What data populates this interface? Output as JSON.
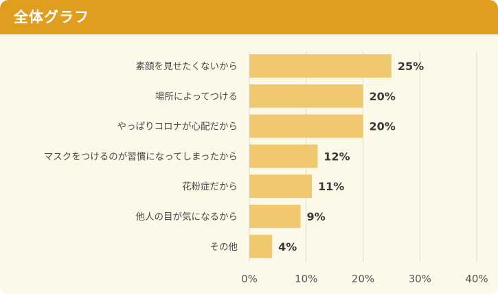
{
  "header": {
    "title": "全体グラフ"
  },
  "chart_data": {
    "type": "bar",
    "orientation": "horizontal",
    "categories": [
      "素顔を見せたくないから",
      "場所によってつける",
      "やっぱりコロナが心配だから",
      "マスクをつけるのが習慣になってしまったから",
      "花粉症だから",
      "他人の目が気になるから",
      "その他"
    ],
    "values": [
      25,
      20,
      20,
      12,
      11,
      9,
      4
    ],
    "value_labels": [
      "25%",
      "20%",
      "20%",
      "12%",
      "11%",
      "9%",
      "4%"
    ],
    "xlim": [
      0,
      40
    ],
    "x_ticks": [
      0,
      10,
      20,
      30,
      40
    ],
    "x_tick_labels": [
      "0%",
      "10%",
      "20%",
      "30%",
      "40%"
    ],
    "grid": true,
    "bar_color": "#f0c96e",
    "grid_color": "#dcdcd2",
    "title": "",
    "xlabel": "",
    "ylabel": ""
  }
}
